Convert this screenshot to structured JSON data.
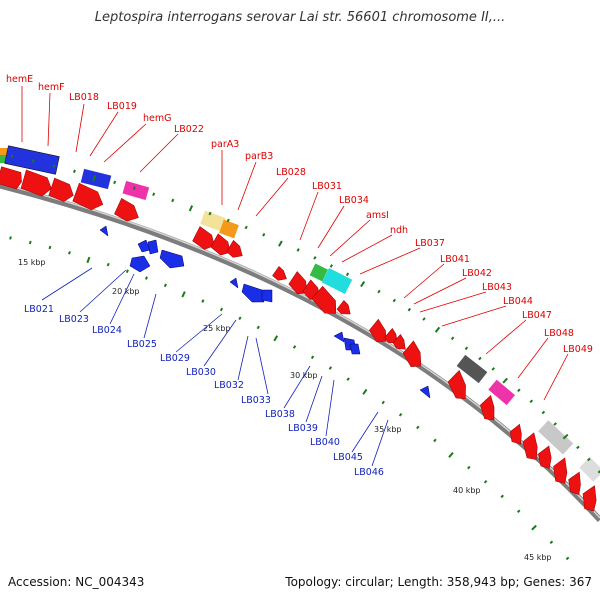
{
  "title": "Leptospira interrogans serovar Lai str. 56601 chromosome II,...",
  "footer": {
    "accession": "Accession: NC_004343",
    "info": "Topology: circular; Length: 358,943 bp; Genes: 367"
  },
  "colors": {
    "forward_label": "#dd0000",
    "reverse_label": "#1122bb",
    "backbone": "#8a8a8a",
    "tick": "#1a7a1a"
  },
  "kbp_labels": [
    "15 kbp",
    "20 kbp",
    "25 kbp",
    "30 kbp",
    "35 kbp",
    "40 kbp",
    "45 kbp"
  ],
  "forward_labels": [
    "hemE",
    "hemF",
    "LB018",
    "LB019",
    "hemG",
    "LB022",
    "parA3",
    "parB3",
    "LB028",
    "LB031",
    "LB034",
    "amsI",
    "ndh",
    "LB037",
    "LB041",
    "LB042",
    "LB043",
    "LB044",
    "LB047",
    "LB048",
    "LB049"
  ],
  "reverse_labels": [
    "LB021",
    "LB023",
    "LB024",
    "LB025",
    "LB029",
    "LB030",
    "LB032",
    "LB033",
    "LB038",
    "LB039",
    "LB040",
    "LB045",
    "LB046"
  ]
}
